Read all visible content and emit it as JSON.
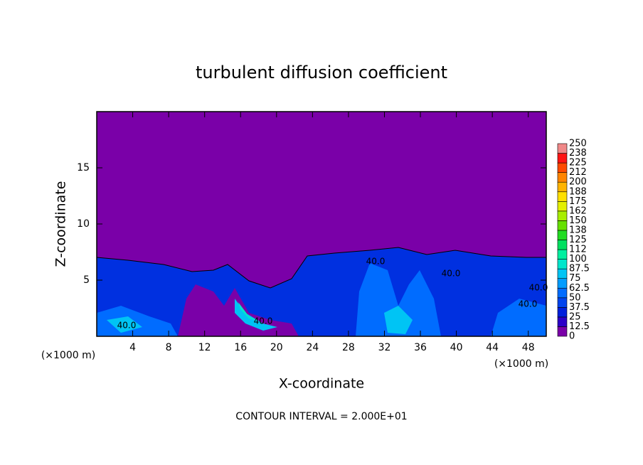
{
  "chart_data": {
    "type": "contour",
    "title": "turbulent diffusion coefficient",
    "xlabel": "X-coordinate",
    "ylabel": "Z-coordinate",
    "x_unit": "(×1000 m)",
    "x_unit_right": "(×1000 m)",
    "footer": "CONTOUR INTERVAL = 2.000E+01",
    "xlim": [
      0,
      50
    ],
    "xticks": [
      4,
      8,
      12,
      16,
      20,
      24,
      28,
      32,
      36,
      40,
      44,
      48
    ],
    "ylim": [
      0,
      20
    ],
    "yticks": [
      5,
      10,
      15
    ],
    "contour_labels": [
      "40.0",
      "40.0",
      "40.0",
      "40.0",
      "40.0",
      "40.0"
    ],
    "colorbar": {
      "levels": [
        0,
        12.5,
        25,
        37.5,
        50,
        62.5,
        75,
        87.5,
        100,
        112,
        125,
        138,
        150,
        162,
        175,
        188,
        200,
        212,
        225,
        238,
        250
      ],
      "colors": [
        "#7a00a8",
        "#2c00c8",
        "#0020dc",
        "#0044ee",
        "#006cff",
        "#009cff",
        "#00c4f4",
        "#00e6cc",
        "#00f0a0",
        "#00e060",
        "#22dc22",
        "#66e000",
        "#a8ee00",
        "#e4f000",
        "#ffe000",
        "#ffb400",
        "#ff8400",
        "#ff4a00",
        "#ff1414",
        "#f08888"
      ]
    }
  }
}
